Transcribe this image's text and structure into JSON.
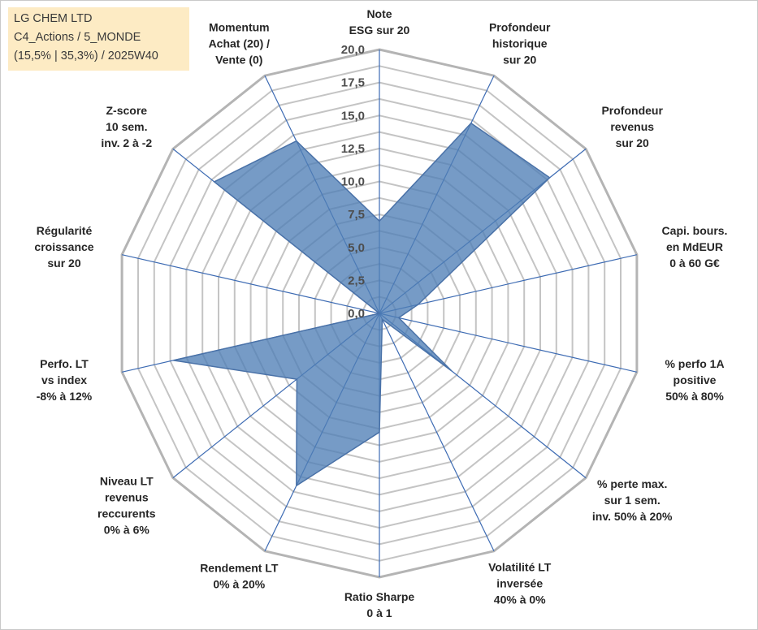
{
  "header": {
    "line1": "LG CHEM LTD",
    "line2": "C4_Actions / 5_MONDE",
    "line3": "(15,5% | 35,3%) / 2025W40"
  },
  "colors": {
    "fill": "#4f7fb6",
    "stroke": "#4a72a8",
    "spoke": "#3d6bb3",
    "grid": "#c4c4c4",
    "outer_ring": "#b4b4b4"
  },
  "chart_data": {
    "type": "radar",
    "title": "LG CHEM LTD",
    "rmin": 0,
    "rmax": 20,
    "tick_step": 2.5,
    "grid_step": 1.25,
    "tick_labels": [
      "0,0",
      "2,5",
      "5,0",
      "7,5",
      "10,0",
      "12,5",
      "15,0",
      "17,5",
      "20,0"
    ],
    "categories": [
      [
        "Note",
        "ESG sur 20"
      ],
      [
        "Profondeur",
        "historique",
        "sur 20"
      ],
      [
        "Profondeur",
        "revenus",
        "sur 20"
      ],
      [
        "Capi. bours.",
        "en MdEUR",
        "0 à 60 G€"
      ],
      [
        "% perfo 1A",
        "positive",
        "50% à 80%"
      ],
      [
        "% perte max.",
        "sur 1 sem.",
        "inv. 50% à 20%"
      ],
      [
        "Volatilité LT",
        "inversée",
        "40% à 0%"
      ],
      [
        "Ratio Sharpe",
        "0 à 1"
      ],
      [
        "Rendement LT",
        "0% à 20%"
      ],
      [
        "Niveau LT",
        "revenus",
        "reccurents",
        "0% à 6%"
      ],
      [
        "Perfo. LT",
        "vs index",
        "-8% à 12%"
      ],
      [
        "Régularité",
        "croissance",
        "sur 20"
      ],
      [
        "Z-score",
        "10 sem.",
        "inv. 2 à -2"
      ],
      [
        "Momentum",
        "Achat (20) /",
        "Vente (0)"
      ]
    ],
    "series": [
      {
        "name": "LG CHEM LTD",
        "values": [
          7.0,
          16.0,
          16.5,
          3.0,
          1.5,
          7.0,
          0.5,
          9.0,
          14.5,
          8.0,
          16.0,
          0.0,
          16.0,
          14.5
        ]
      }
    ]
  }
}
